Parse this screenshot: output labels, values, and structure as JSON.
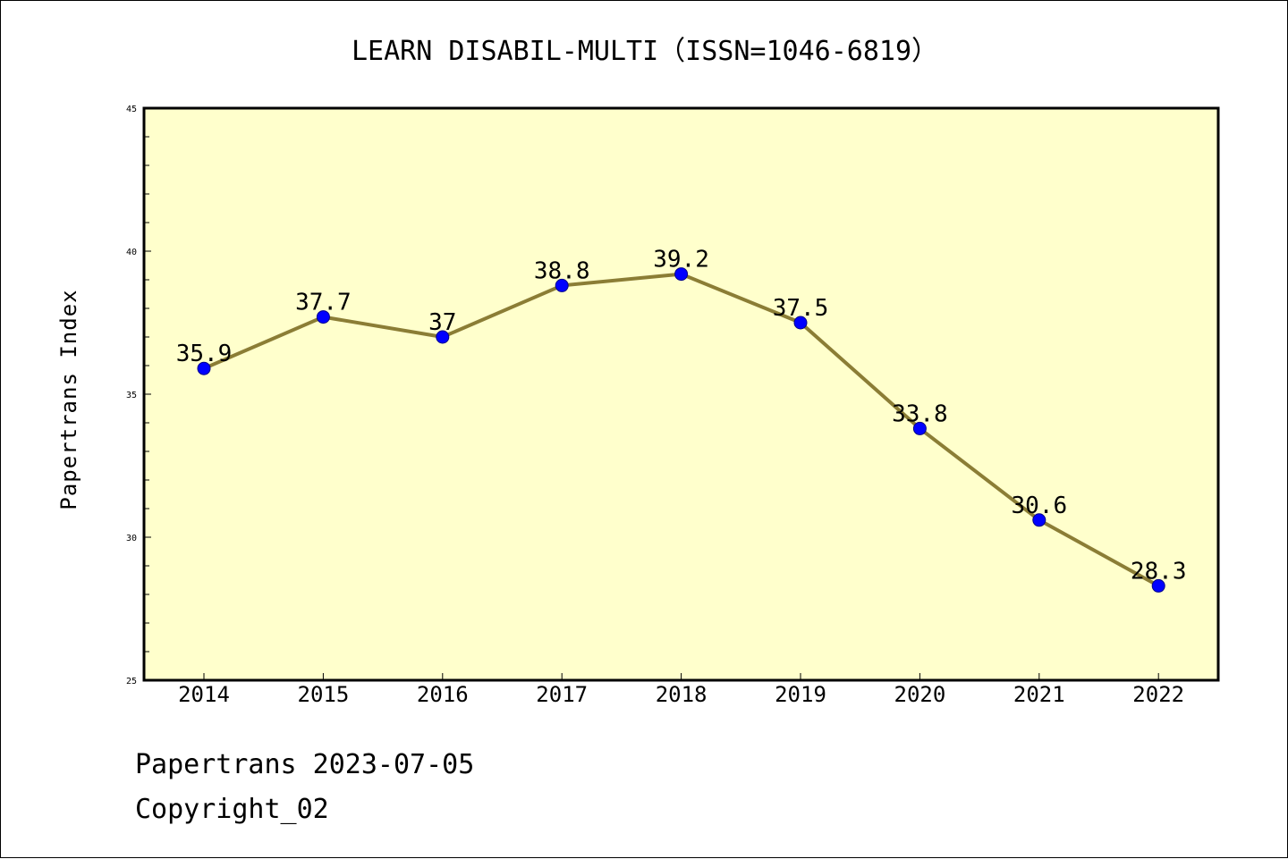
{
  "chart_data": {
    "type": "line",
    "title": "LEARN DISABIL-MULTI（ISSN=1046-6819）",
    "xlabel": "",
    "ylabel": "Papertrans Index",
    "categories": [
      "2014",
      "2015",
      "2016",
      "2017",
      "2018",
      "2019",
      "2020",
      "2021",
      "2022"
    ],
    "values": [
      35.9,
      37.7,
      37,
      38.8,
      39.2,
      37.5,
      33.8,
      30.6,
      28.3
    ],
    "data_labels": [
      "35.9",
      "37.7",
      "37",
      "38.8",
      "39.2",
      "37.5",
      "33.8",
      "30.6",
      "28.3"
    ],
    "ylim": [
      25,
      45
    ],
    "yticks": [
      "25",
      "30",
      "35",
      "40",
      "45"
    ],
    "grid": false,
    "legend": "none",
    "colors": {
      "plot_background": "#ffffcc",
      "line": "#8b7d35",
      "marker": "#0000ff"
    }
  },
  "footer": {
    "line1": "Papertrans 2023-07-05",
    "line2": "Copyright_02"
  }
}
